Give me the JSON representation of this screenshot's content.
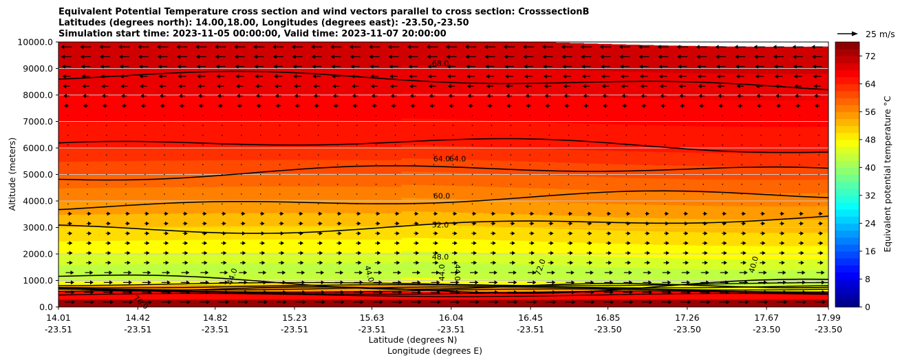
{
  "chart_data": {
    "type": "heatmap",
    "title_lines": [
      "Equivalent Potential Temperature cross section and wind vectors parallel to cross section: CrosssectionB",
      "Latitudes (degrees north): 14.00,18.00, Longitudes (degrees east): -23.50,-23.50",
      "Simulation start time: 2023-11-05 00:00:00, Valid time: 2023-11-07 20:00:00"
    ],
    "ylabel": "Altitude (meters)",
    "xlabel_lat": "Latitude (degrees N)",
    "xlabel_lon": "Longitude (degrees E)",
    "ylim": [
      0,
      10000
    ],
    "yticks": [
      "0.0",
      "1000.0",
      "2000.0",
      "3000.0",
      "4000.0",
      "5000.0",
      "6000.0",
      "7000.0",
      "8000.0",
      "9000.0",
      "10000.0"
    ],
    "ytick_values": [
      0,
      1000,
      2000,
      3000,
      4000,
      5000,
      6000,
      7000,
      8000,
      9000,
      10000
    ],
    "xlim": [
      14.01,
      17.99
    ],
    "xtick_positions": [
      14.01,
      14.42,
      14.82,
      15.23,
      15.63,
      16.04,
      16.45,
      16.85,
      17.26,
      17.67,
      17.99
    ],
    "xtick_lat_labels": [
      "14.01",
      "14.42",
      "14.82",
      "15.23",
      "15.63",
      "16.04",
      "16.45",
      "16.85",
      "17.26",
      "17.67",
      "17.99"
    ],
    "xtick_lon_labels": [
      "-23.51",
      "-23.51",
      "-23.51",
      "-23.51",
      "-23.51",
      "-23.51",
      "-23.51",
      "-23.50",
      "-23.50",
      "-23.50",
      "-23.50"
    ],
    "grid": "horizontal",
    "colorbar": {
      "label": "Equivalent potential temperature $^\\circ$C",
      "label_text": "Equivalent potential temperature °C",
      "range": [
        0,
        76
      ],
      "ticks": [
        "0",
        "8",
        "16",
        "24",
        "32",
        "40",
        "48",
        "56",
        "64",
        "72"
      ],
      "tick_values": [
        0,
        8,
        16,
        24,
        32,
        40,
        48,
        56,
        64,
        72
      ],
      "colormap": "jet"
    },
    "wind_key": {
      "label": "25 m/s",
      "value": 25
    },
    "contour_labels": [
      "68.0",
      "64.0",
      "64.0",
      "60.0",
      "52.0",
      "48.0",
      "44.0",
      "44.0",
      "44.0",
      "44.0",
      "40.0",
      "72.0",
      "76.0"
    ],
    "field_profile": {
      "altitude": [
        0,
        300,
        600,
        800,
        1000,
        1300,
        1600,
        2000,
        2500,
        3000,
        3500,
        4000,
        4500,
        5000,
        5500,
        6000,
        7000,
        8000,
        9000,
        10000
      ],
      "theta_e": [
        76,
        72,
        60,
        50,
        44,
        42,
        43,
        46,
        49,
        51,
        54,
        56,
        58,
        60,
        62,
        64,
        66,
        67,
        69,
        71
      ]
    }
  }
}
